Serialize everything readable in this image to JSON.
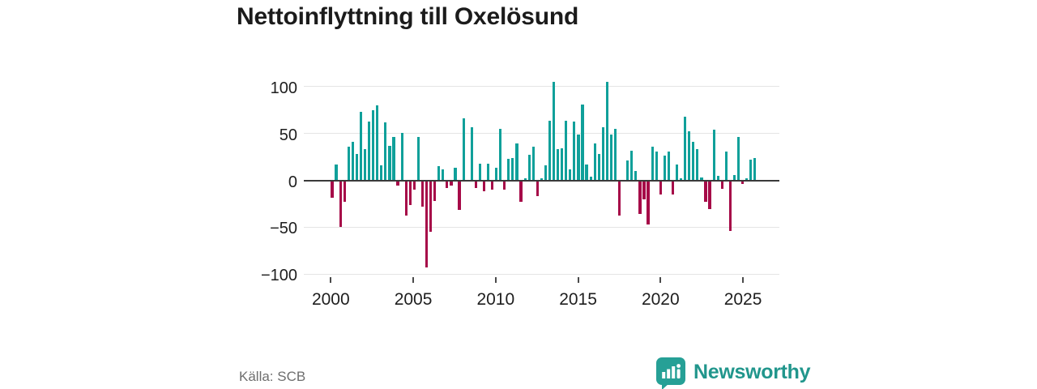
{
  "title": "Nettoinflyttning till Oxelösund",
  "source": "Källa: SCB",
  "brand": {
    "name": "Newsworthy",
    "icon": "newsworthy-speech-bubble-barchart-icon"
  },
  "colors": {
    "positive_bar": "#10a09a",
    "negative_bar": "#a60a48",
    "gridline": "#e4e4e4",
    "zero_line": "#3a3a3a",
    "axis_text": "#1e1e1e",
    "muted_text": "#6e6e6e",
    "brand_teal": "#21968c",
    "title_text": "#1b1b1b"
  },
  "chart_data": {
    "type": "bar",
    "title": "Nettoinflyttning till Oxelösund",
    "x_start": "2000 Q1",
    "x_frequency": "quarterly",
    "x_tick_years": [
      2000,
      2005,
      2010,
      2015,
      2020,
      2025
    ],
    "y_ticks": [
      100,
      50,
      0,
      -50,
      -100
    ],
    "ylim": [
      -110,
      112
    ],
    "grid": true,
    "legend": "none",
    "values": [
      -19,
      17,
      -50,
      -23,
      36,
      41,
      28,
      73,
      33,
      63,
      75,
      80,
      16,
      62,
      37,
      46,
      -6,
      51,
      -38,
      -26,
      -10,
      46,
      -28,
      -93,
      -55,
      -22,
      15,
      12,
      -8,
      -6,
      13,
      -32,
      66,
      0,
      57,
      -8,
      18,
      -12,
      18,
      -10,
      13,
      55,
      -10,
      23,
      24,
      39,
      -23,
      2,
      27,
      36,
      -17,
      2,
      16,
      64,
      105,
      33,
      34,
      64,
      12,
      63,
      49,
      81,
      17,
      4,
      39,
      28,
      57,
      105,
      49,
      55,
      -38,
      0,
      21,
      32,
      10,
      -36,
      -20,
      -47,
      36,
      31,
      -15,
      26,
      31,
      -15,
      17,
      2,
      68,
      52,
      41,
      33,
      3,
      -23,
      -31,
      54,
      5,
      -9,
      31,
      -54,
      6,
      46,
      -4,
      2,
      22,
      24
    ]
  }
}
